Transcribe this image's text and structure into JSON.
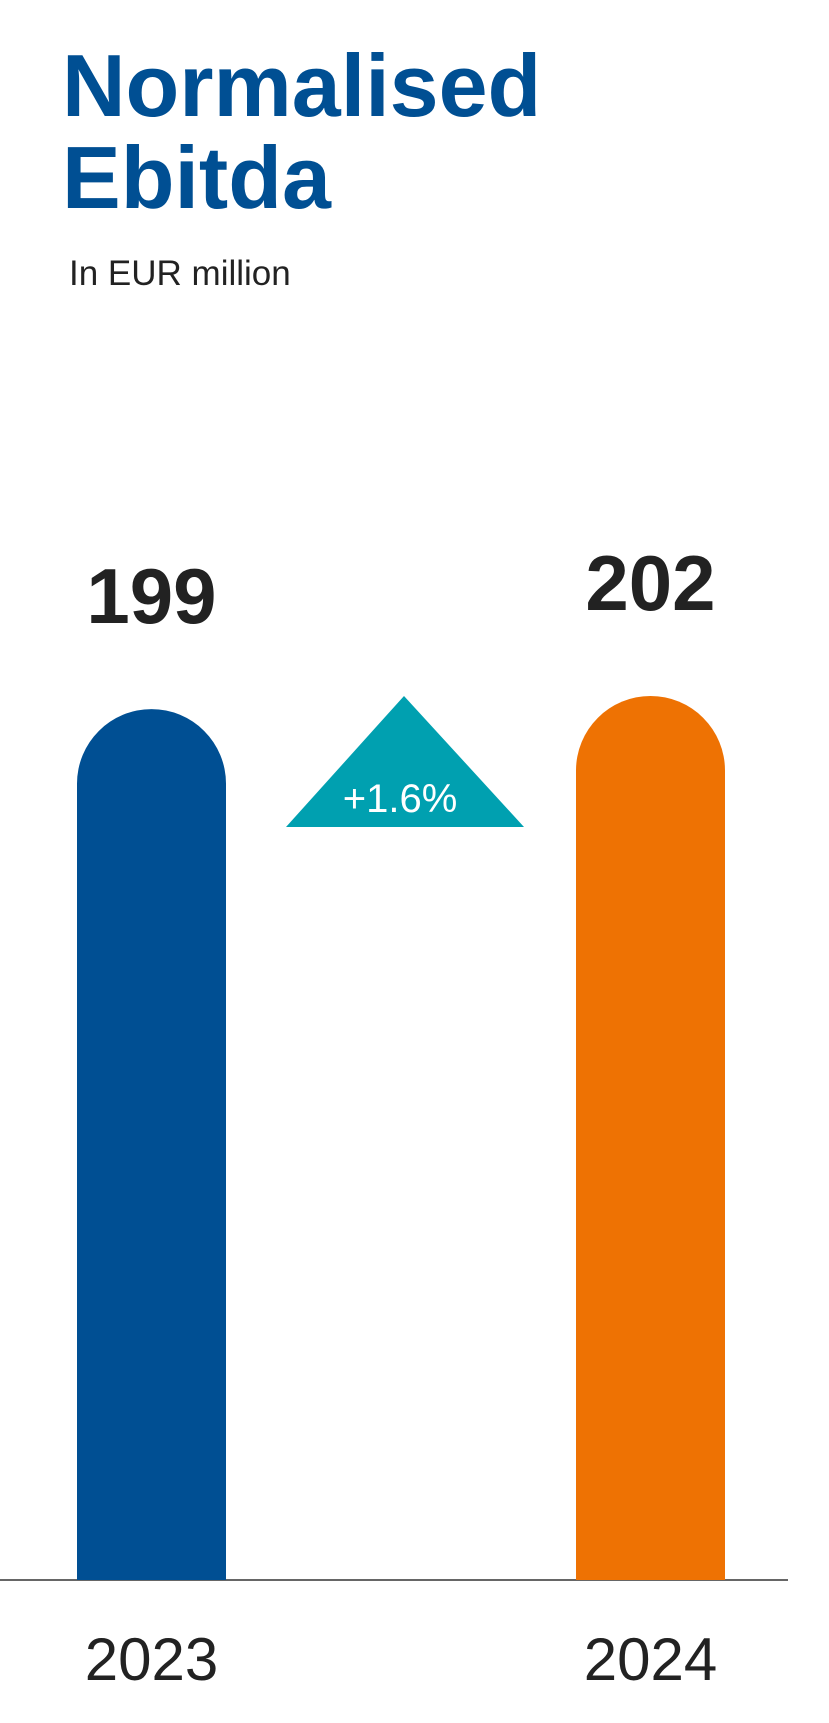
{
  "chart_data": {
    "type": "bar",
    "title": "Normalised Ebitda",
    "subtitle": "In EUR million",
    "categories": [
      "2023",
      "2024"
    ],
    "values": [
      199,
      202
    ],
    "colors": [
      "#004f93",
      "#ee7203"
    ],
    "change_label": "+1.6%",
    "change_color": "#00a0b0"
  }
}
